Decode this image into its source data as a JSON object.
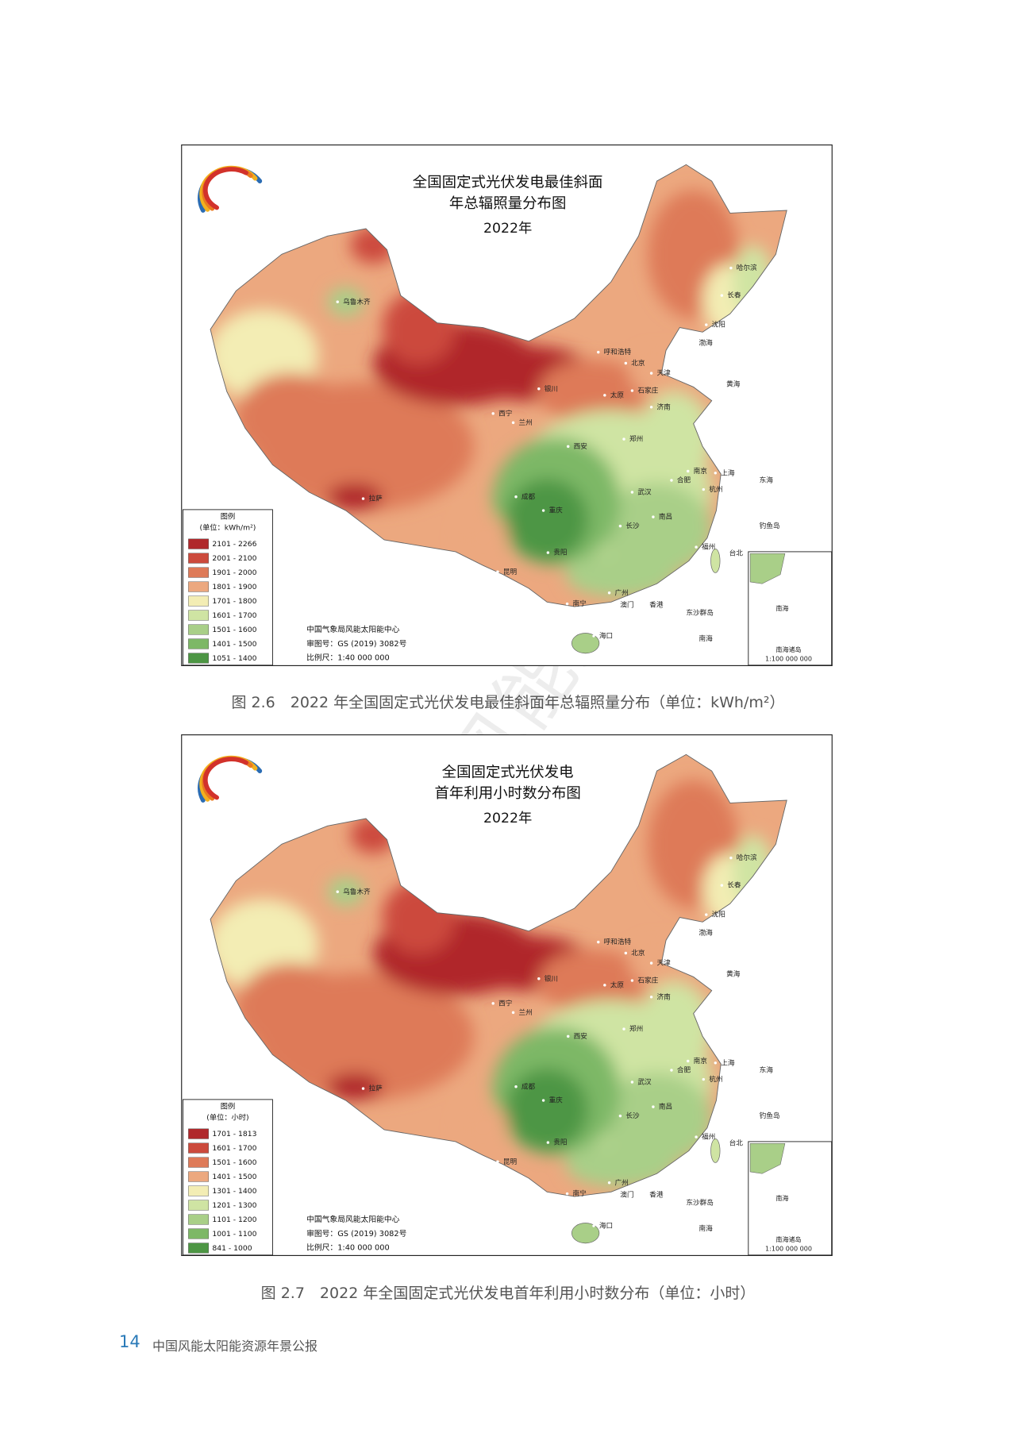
{
  "maps": [
    {
      "title_lines": [
        "全国固定式光伏发电最佳斜面",
        "年总辐照量分布图"
      ],
      "year": "2022年",
      "legend": {
        "title": "图例",
        "unit": "(单位：kWh/m²)",
        "items": [
          {
            "label": "2101 - 2266",
            "color": "#b0282b"
          },
          {
            "label": "2001 - 2100",
            "color": "#cc4a3c"
          },
          {
            "label": "1901 - 2000",
            "color": "#de7a58"
          },
          {
            "label": "1801 - 1900",
            "color": "#eca87f"
          },
          {
            "label": "1701 - 1800",
            "color": "#f3edb4"
          },
          {
            "label": "1601 - 1700",
            "color": "#cfe4a3"
          },
          {
            "label": "1501 - 1600",
            "color": "#a9cf88"
          },
          {
            "label": "1401 - 1500",
            "color": "#7db866"
          },
          {
            "label": "1051 - 1400",
            "color": "#4d9644"
          }
        ]
      },
      "credits": [
        "中国气象局风能太阳能中心",
        "审图号：GS (2019) 3082号",
        "比例尺：1:40 000 000"
      ],
      "caption": "图 2.6　2022 年全国固定式光伏发电最佳斜面年总辐照量分布（单位：kWh/m²）"
    },
    {
      "title_lines": [
        "全国固定式光伏发电",
        "首年利用小时数分布图"
      ],
      "year": "2022年",
      "legend": {
        "title": "图例",
        "unit": "(单位：小时)",
        "items": [
          {
            "label": "1701 - 1813",
            "color": "#b0282b"
          },
          {
            "label": "1601 - 1700",
            "color": "#cc4a3c"
          },
          {
            "label": "1501 - 1600",
            "color": "#de7a58"
          },
          {
            "label": "1401 - 1500",
            "color": "#eca87f"
          },
          {
            "label": "1301 - 1400",
            "color": "#f3edb4"
          },
          {
            "label": "1201 - 1300",
            "color": "#cfe4a3"
          },
          {
            "label": "1101 - 1200",
            "color": "#a9cf88"
          },
          {
            "label": "1001 - 1100",
            "color": "#7db866"
          },
          {
            "label": "841 - 1000",
            "color": "#4d9644"
          }
        ]
      },
      "credits": [
        "中国气象局风能太阳能中心",
        "审图号：GS (2019) 3082号",
        "比例尺：1:40 000 000"
      ],
      "caption": "图 2.7　2022 年全国固定式光伏发电首年利用小时数分布（单位：小时）"
    }
  ],
  "map_labels": [
    "乌鲁木齐",
    "哈尔滨",
    "长春",
    "沈阳",
    "呼和浩特",
    "北京",
    "天津",
    "银川",
    "太原",
    "石家庄",
    "济南",
    "西宁",
    "兰州",
    "西安",
    "郑州",
    "南京",
    "上海",
    "合肥",
    "杭州",
    "拉萨",
    "成都",
    "武汉",
    "重庆",
    "长沙",
    "南昌",
    "贵阳",
    "福州",
    "台北",
    "昆明",
    "南宁",
    "广州",
    "澳门",
    "香港",
    "海口",
    "渤海",
    "黄海",
    "东海",
    "南海",
    "钓鱼岛",
    "东沙群岛"
  ],
  "inset_labels": [
    "南海",
    "南海诸岛",
    "1:100 000 000"
  ],
  "footer": {
    "page": "14",
    "title": "中国风能太阳能资源年景公报"
  },
  "watermark": "中国气象局风能太阳能中心"
}
